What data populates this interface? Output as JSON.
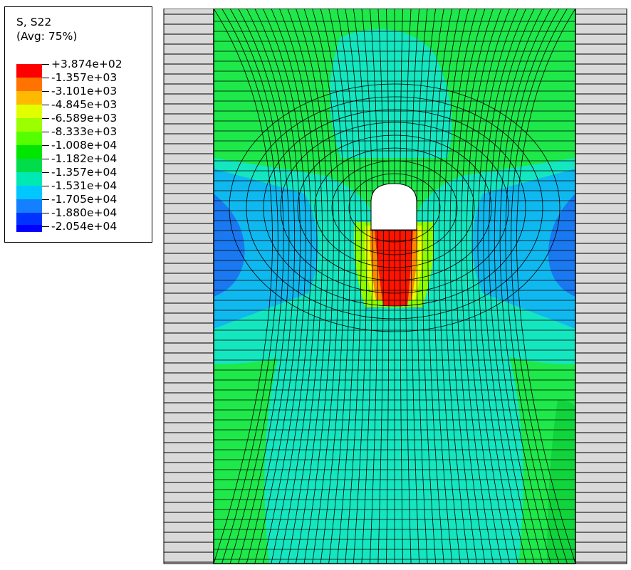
{
  "legend": {
    "title_line1": "S, S22",
    "title_line2": "(Avg: 75%)",
    "entries": [
      {
        "label": "+3.874e+02",
        "color": "#ff0000"
      },
      {
        "label": "-1.357e+03",
        "color": "#ff7300"
      },
      {
        "label": "-3.101e+03",
        "color": "#ffb900"
      },
      {
        "label": "-4.845e+03",
        "color": "#e2ff00"
      },
      {
        "label": "-6.589e+03",
        "color": "#9cff00"
      },
      {
        "label": "-8.333e+03",
        "color": "#56ff00"
      },
      {
        "label": "-1.008e+04",
        "color": "#00e600"
      },
      {
        "label": "-1.182e+04",
        "color": "#00dc4a"
      },
      {
        "label": "-1.357e+04",
        "color": "#00e8b4"
      },
      {
        "label": "-1.531e+04",
        "color": "#00c8ff"
      },
      {
        "label": "-1.705e+04",
        "color": "#1580ff"
      },
      {
        "label": "-1.880e+04",
        "color": "#0033ff"
      },
      {
        "label": "-2.054e+04",
        "color": ""
      }
    ],
    "last_swatch_color": "#0000ff"
  },
  "colors": {
    "side_panel": "#d9d9d9",
    "mesh_line": "#000000",
    "band_green": "#1ee84a",
    "band_green_dark": "#10d43c",
    "band_cyan": "#14e6c0",
    "band_lightblue": "#10b8f0",
    "band_blue": "#1a78f0",
    "band_darkblue": "#1040e6",
    "band_red": "#ff1400",
    "band_orange": "#ff8a00",
    "band_yellow": "#e8ff00",
    "band_lime": "#8cff00",
    "cavity": "#ffffff"
  }
}
